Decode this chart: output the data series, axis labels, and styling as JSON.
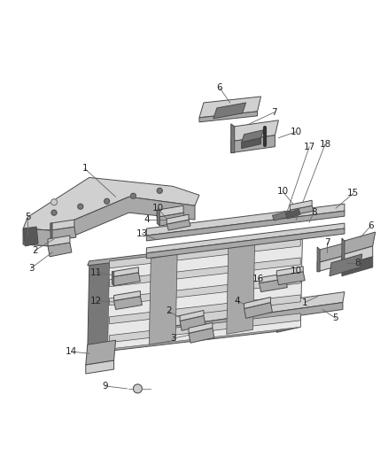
{
  "bg_color": "#ffffff",
  "line_color": "#4a4a4a",
  "label_color": "#222222",
  "fig_width": 4.38,
  "fig_height": 5.33,
  "dpi": 100,
  "gray_light": "#d0d0d0",
  "gray_mid": "#a8a8a8",
  "gray_dark": "#787878",
  "gray_very_dark": "#585858",
  "gray_white": "#e8e8e8"
}
